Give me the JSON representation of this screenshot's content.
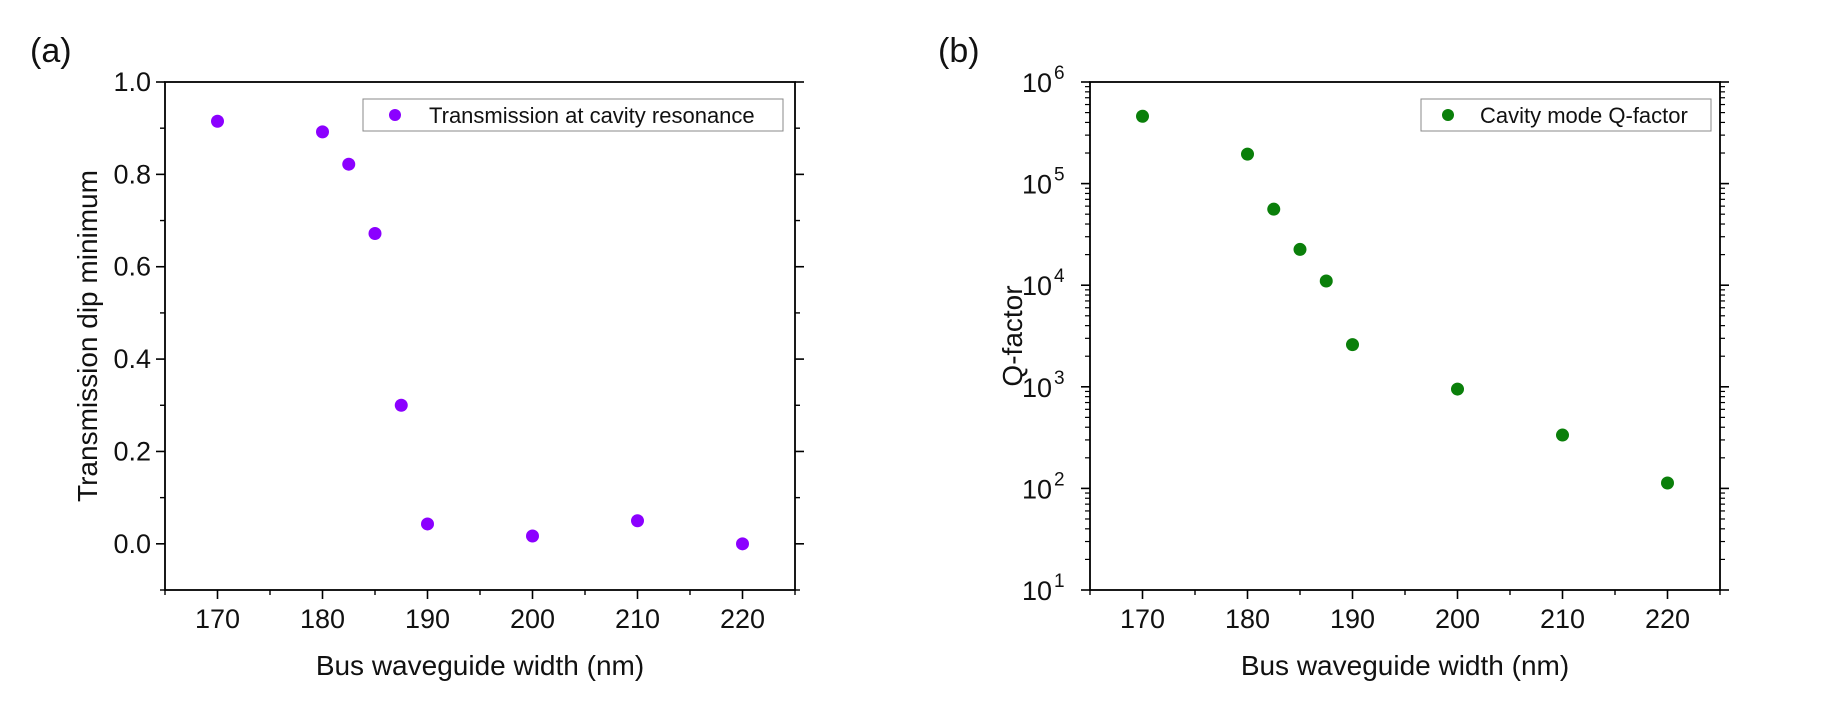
{
  "chart_data": [
    {
      "panel_label": "(a)",
      "type": "scatter",
      "xlabel": "Bus waveguide width (nm)",
      "ylabel": "Transmission dip minimum",
      "xlim": [
        165,
        225
      ],
      "ylim": [
        -0.1,
        1.0
      ],
      "yscale": "linear",
      "grid": false,
      "legend_position": "top-right",
      "xticks": [
        170,
        180,
        190,
        200,
        210,
        220
      ],
      "xtick_labels": [
        "170",
        "180",
        "190",
        "200",
        "210",
        "220"
      ],
      "yticks": [
        0.0,
        0.2,
        0.4,
        0.6,
        0.8,
        1.0
      ],
      "ytick_labels": [
        "0.0",
        "0.2",
        "0.4",
        "0.6",
        "0.8",
        "1.0"
      ],
      "series": [
        {
          "name": "Transmission at cavity resonance",
          "color": "#8B00FF",
          "x": [
            170,
            180,
            182.5,
            185,
            187.5,
            190,
            200,
            210,
            220
          ],
          "y": [
            0.915,
            0.892,
            0.822,
            0.672,
            0.3,
            0.043,
            0.017,
            0.05,
            0.0
          ]
        }
      ]
    },
    {
      "panel_label": "(b)",
      "type": "scatter",
      "xlabel": "Bus waveguide width (nm)",
      "ylabel": "Q-factor",
      "xlim": [
        165,
        225
      ],
      "ylim": [
        10,
        1000000
      ],
      "yscale": "log",
      "grid": false,
      "legend_position": "top-right",
      "xticks": [
        170,
        180,
        190,
        200,
        210,
        220
      ],
      "xtick_labels": [
        "170",
        "180",
        "190",
        "200",
        "210",
        "220"
      ],
      "yticks": [
        10,
        100,
        1000,
        10000,
        100000,
        1000000
      ],
      "ytick_labels": [
        {
          "base": "10",
          "exp": "1"
        },
        {
          "base": "10",
          "exp": "2"
        },
        {
          "base": "10",
          "exp": "3"
        },
        {
          "base": "10",
          "exp": "4"
        },
        {
          "base": "10",
          "exp": "5"
        },
        {
          "base": "10",
          "exp": "6"
        }
      ],
      "series": [
        {
          "name": "Cavity mode Q-factor",
          "color": "#0A7F0A",
          "x": [
            170,
            180,
            182.5,
            185,
            187.5,
            190,
            200,
            210,
            220
          ],
          "y": [
            460000,
            195000,
            56000,
            22500,
            11000,
            2600,
            950,
            335,
            113
          ]
        }
      ]
    }
  ]
}
